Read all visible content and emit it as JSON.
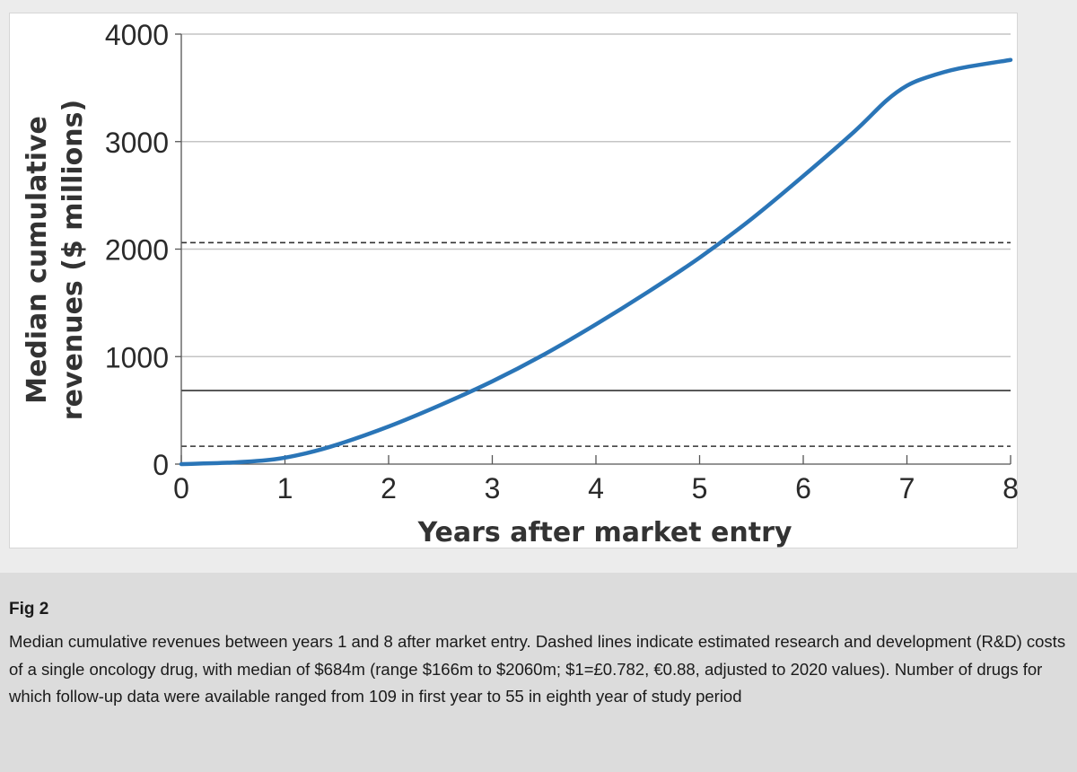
{
  "chart_data": {
    "type": "line",
    "title": "",
    "xlabel": "Years after market entry",
    "ylabel_lines": [
      "Median cumulative",
      "revenues ($ millions)"
    ],
    "xlim": [
      0,
      8
    ],
    "ylim": [
      0,
      4000
    ],
    "x_ticks": [
      "0",
      "1",
      "2",
      "3",
      "4",
      "5",
      "6",
      "7",
      "8"
    ],
    "y_ticks": [
      "0",
      "1000",
      "2000",
      "3000",
      "4000"
    ],
    "grid": "horizontal",
    "legend": "none",
    "series": [
      {
        "color": "#2a75b7",
        "x": [
          0,
          0.5,
          0.9,
          1.2,
          1.5,
          2,
          2.5,
          3,
          3.5,
          4,
          4.5,
          5,
          5.5,
          6,
          6.5,
          6.8,
          7,
          7.2,
          7.5,
          8
        ],
        "y": [
          0,
          15,
          45,
          100,
          180,
          350,
          550,
          770,
          1020,
          1300,
          1600,
          1920,
          2280,
          2680,
          3100,
          3380,
          3520,
          3600,
          3680,
          3760
        ]
      }
    ],
    "reference_lines": [
      {
        "value": 684,
        "style": "solid",
        "color": "#333333"
      },
      {
        "value": 166,
        "style": "dashed",
        "color": "#333333"
      },
      {
        "value": 2060,
        "style": "dashed",
        "color": "#333333"
      }
    ]
  },
  "caption": {
    "title": "Fig 2",
    "text": "Median cumulative revenues between years 1 and 8 after market entry. Dashed lines indicate estimated research and development (R&D) costs of a single oncology drug, with median of $684m (range $166m to $2060m; $1=£0.782, €0.88, adjusted to 2020 values). Number of drugs for which follow-up data were available ranged from 109 in first year to 55 in eighth year of study period"
  }
}
